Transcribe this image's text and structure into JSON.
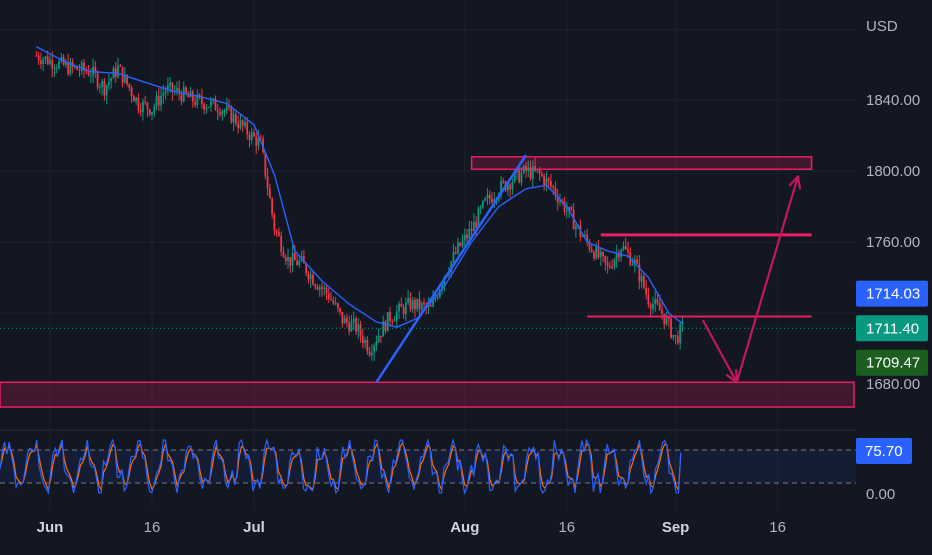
{
  "currency": "USD",
  "price_axis": {
    "ticks": [
      {
        "value": 1840,
        "label": "1840.00"
      },
      {
        "value": 1800,
        "label": "1800.00"
      },
      {
        "value": 1760,
        "label": "1760.00"
      },
      {
        "value": 1680,
        "label": "1680.00"
      }
    ]
  },
  "time_axis": {
    "ticks": [
      {
        "day": 0,
        "label": "Jun"
      },
      {
        "day": 15,
        "label": "16"
      },
      {
        "day": 30,
        "label": "Jul"
      },
      {
        "day": 61,
        "label": "Aug"
      },
      {
        "day": 76,
        "label": "16"
      },
      {
        "day": 92,
        "label": "Sep"
      },
      {
        "day": 107,
        "label": "16"
      }
    ]
  },
  "price_badges": [
    {
      "label": "1714.03",
      "value": 1714.03,
      "color": "#2962ff"
    },
    {
      "label": "1711.40",
      "value": 1711.4,
      "color": "#089981"
    },
    {
      "label": "1709.47",
      "value": 1709.47,
      "color": "#1b5e20"
    }
  ],
  "indicator": {
    "value_label": "75.70",
    "value": 75.7,
    "axis_label": "0.00",
    "upper_band": 80,
    "lower_band": 20,
    "line_colors": [
      "#2962ff",
      "#ff6d00"
    ]
  },
  "colors": {
    "background": "#131722",
    "up_candle": "#089981",
    "down_candle": "#f23645",
    "moving_average": "#2962ff",
    "zone": "#e91e63",
    "arrow": "#c2185b",
    "trendline": "#2962ff",
    "current_price_line": "#089981"
  },
  "chart_data": {
    "type": "line",
    "title": "",
    "xlabel": "",
    "ylabel": "USD",
    "ylim": [
      1660,
      1880
    ],
    "series": [
      {
        "kind": "candlestick-close",
        "x": [
          -2,
          3,
          6,
          8,
          10,
          13,
          15,
          17,
          19,
          21,
          23,
          25,
          27,
          29,
          31,
          33,
          35,
          37,
          39,
          41,
          43,
          45,
          47,
          50,
          53,
          56,
          58,
          60,
          62,
          64,
          66,
          68,
          70,
          72,
          74,
          76,
          78,
          80,
          82,
          84,
          86,
          88,
          90,
          92,
          93
        ],
        "values": [
          1865,
          1858,
          1856,
          1847,
          1858,
          1838,
          1835,
          1846,
          1844,
          1840,
          1838,
          1836,
          1830,
          1822,
          1815,
          1768,
          1750,
          1748,
          1738,
          1730,
          1716,
          1712,
          1700,
          1718,
          1725,
          1722,
          1742,
          1756,
          1767,
          1782,
          1790,
          1795,
          1800,
          1798,
          1790,
          1778,
          1765,
          1755,
          1745,
          1758,
          1748,
          1728,
          1720,
          1705,
          1711.4
        ]
      },
      {
        "kind": "moving-average",
        "x": [
          -2,
          2,
          6,
          10,
          14,
          18,
          22,
          26,
          30,
          33,
          36,
          40,
          44,
          48,
          51,
          54,
          58,
          62,
          66,
          70,
          73,
          76,
          79,
          82,
          85,
          88,
          91,
          93
        ],
        "values": [
          1870,
          1862,
          1856,
          1855,
          1850,
          1845,
          1842,
          1838,
          1826,
          1798,
          1755,
          1738,
          1725,
          1715,
          1712,
          1717,
          1735,
          1760,
          1780,
          1790,
          1792,
          1780,
          1760,
          1755,
          1752,
          1740,
          1720,
          1714
        ]
      }
    ],
    "drawings": {
      "trendline": {
        "from": {
          "day": 48,
          "price": 1681
        },
        "to": {
          "day": 70,
          "price": 1809
        }
      },
      "resistance_zone": {
        "day_from": 62,
        "day_to": 112,
        "price_from": 1801,
        "price_to": 1808
      },
      "support_zone": {
        "day_from": -10,
        "day_to": 150,
        "price_from": 1667,
        "price_to": 1681
      },
      "horizontal_lines": [
        {
          "day_from": 81,
          "day_to": 112,
          "price": 1764
        },
        {
          "day_from": 79,
          "day_to": 112,
          "price": 1718
        }
      ],
      "projection_path": [
        {
          "day": 96,
          "price": 1716
        },
        {
          "day": 101,
          "price": 1681
        },
        {
          "day": 110,
          "price": 1797
        }
      ]
    }
  }
}
